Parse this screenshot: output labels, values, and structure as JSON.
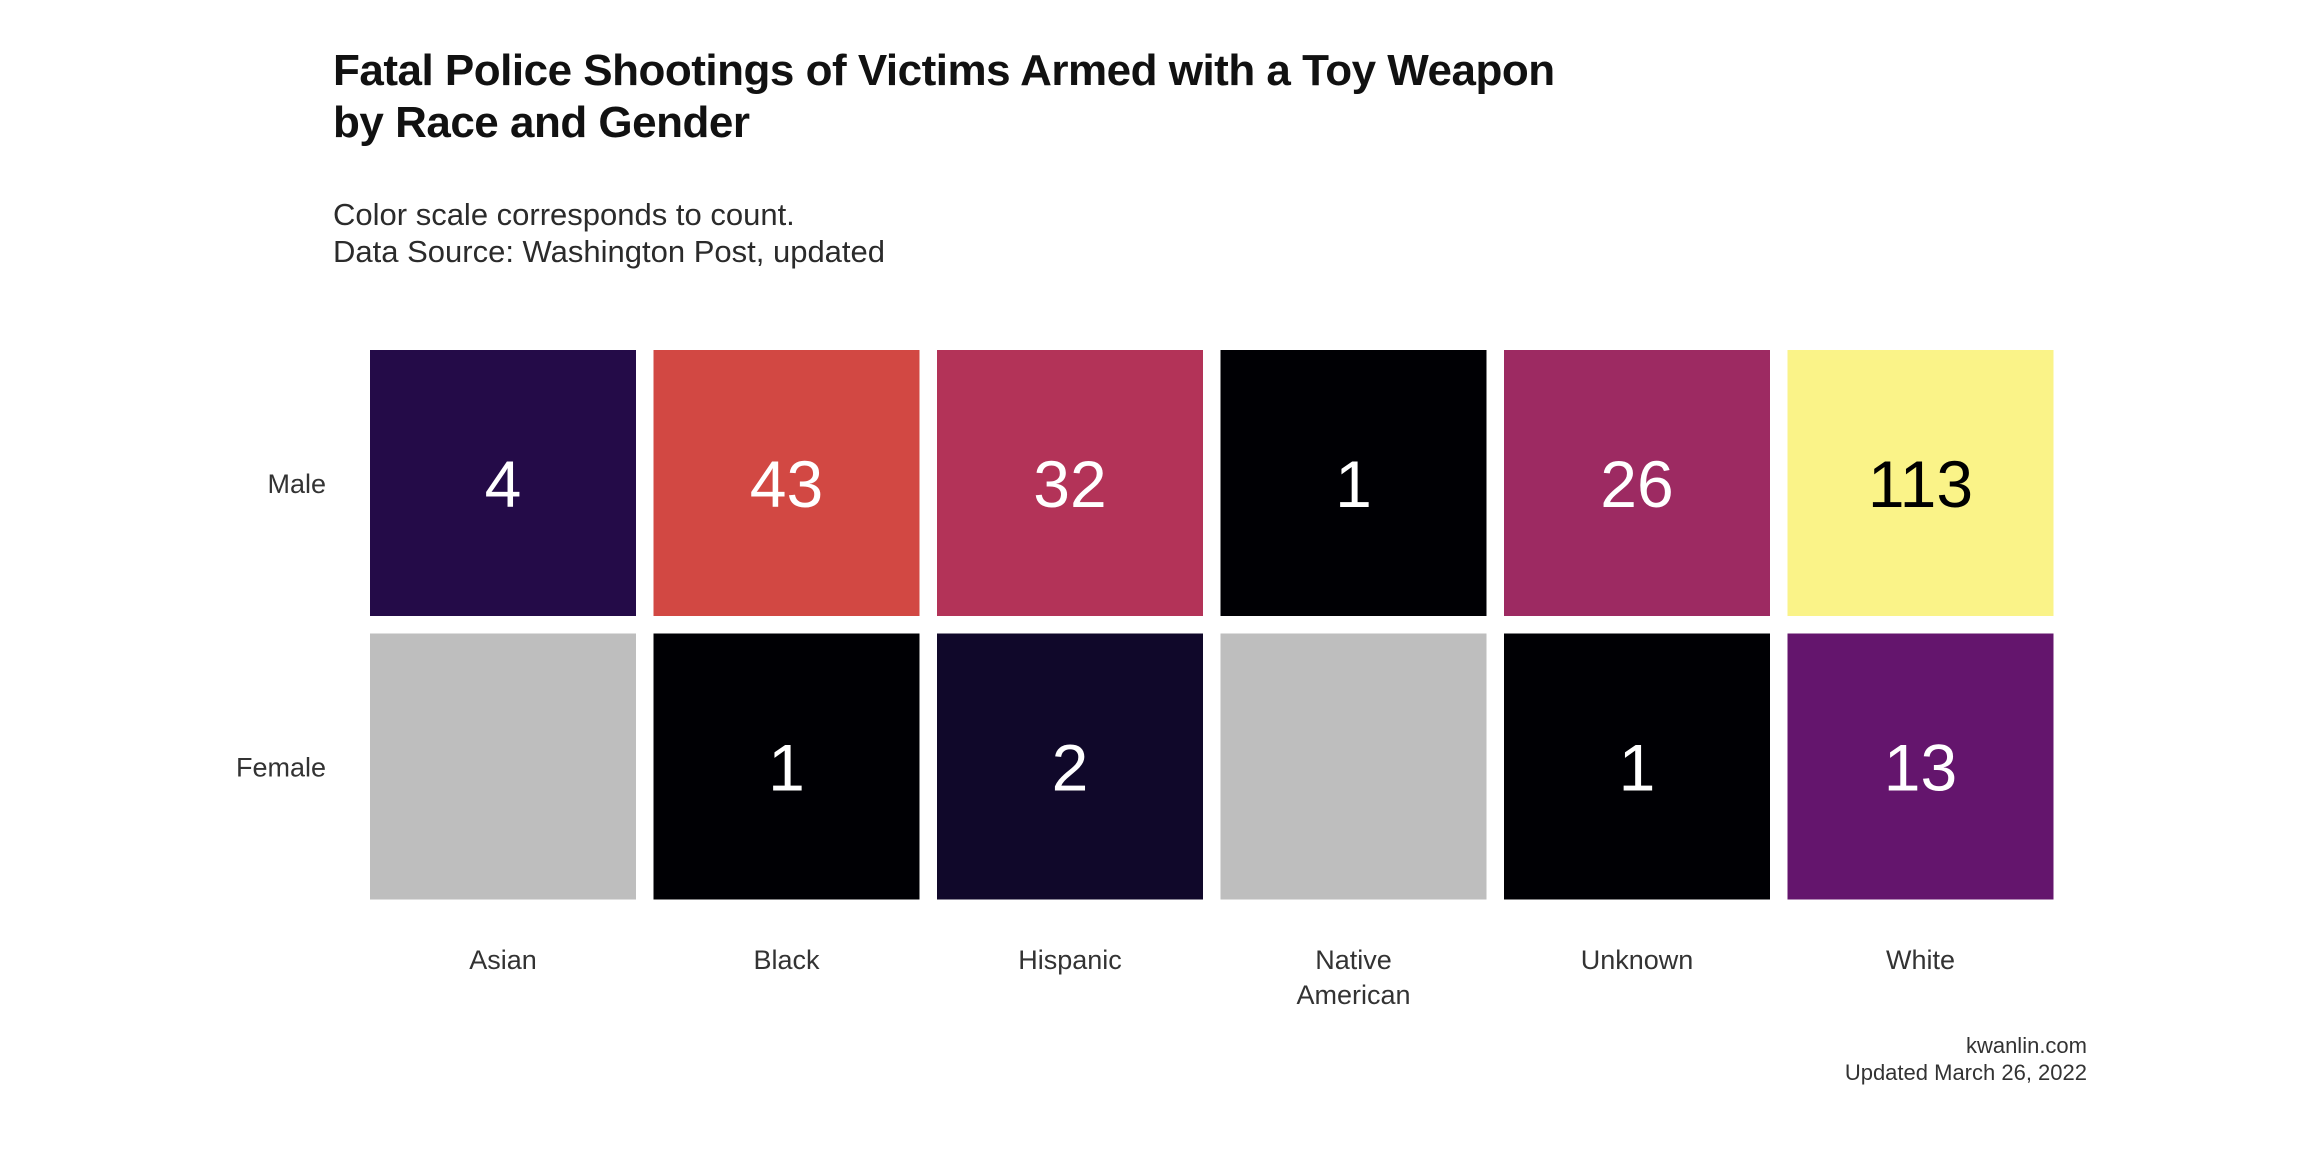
{
  "title_lines": [
    "Fatal Police Shootings of Victims Armed with a Toy Weapon",
    "by Race and Gender"
  ],
  "subtitle_lines": [
    "Color scale corresponds to count.",
    "Data Source: Washington Post, updated"
  ],
  "caption_lines": [
    "kwanlin.com",
    "Updated March 26, 2022"
  ],
  "colors": {
    "missing": "#bebebe",
    "palette": "inferno",
    "label_light": "#ffffff",
    "label_dark": "#000000"
  },
  "chart_data": {
    "type": "heatmap",
    "title": "Fatal Police Shootings of Victims Armed with a Toy Weapon by Race and Gender",
    "subtitle": "Color scale corresponds to count.",
    "x_categories": [
      [
        "Asian"
      ],
      [
        "Black"
      ],
      [
        "Hispanic"
      ],
      [
        "Native",
        "American"
      ],
      [
        "Unknown"
      ],
      [
        "White"
      ]
    ],
    "x_labels": [
      "Asian",
      "Black",
      "Hispanic",
      "Native American",
      "Unknown",
      "White"
    ],
    "y_categories": [
      "Male",
      "Female"
    ],
    "values": [
      [
        4,
        43,
        32,
        1,
        26,
        113
      ],
      [
        null,
        1,
        2,
        null,
        1,
        13
      ]
    ],
    "color_scale": "inferno",
    "value_range": [
      1,
      113
    ],
    "legend": "none",
    "grid": false
  }
}
